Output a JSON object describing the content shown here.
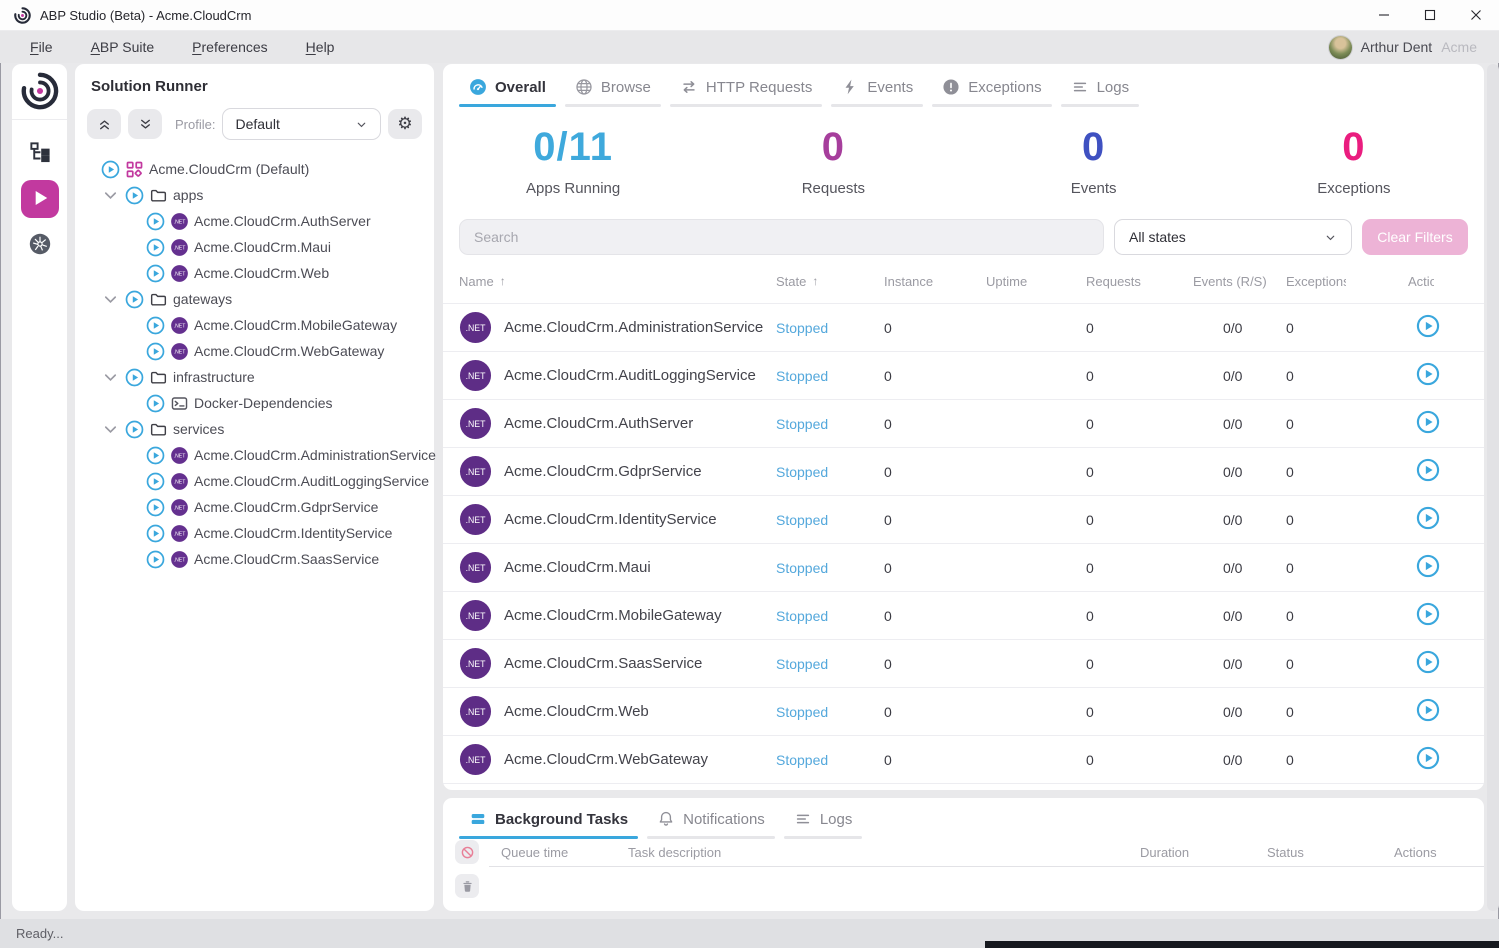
{
  "window": {
    "title": "ABP Studio (Beta) - Acme.CloudCrm",
    "controls": [
      "minimize",
      "maximize",
      "close"
    ]
  },
  "menu": {
    "items": [
      "File",
      "ABP Suite",
      "Preferences",
      "Help"
    ],
    "user": {
      "name": "Arthur Dent",
      "org": "Acme"
    }
  },
  "rail": {
    "items": [
      {
        "icon": "tree",
        "name": "solution-explorer",
        "active": false
      },
      {
        "icon": "play",
        "name": "solution-runner",
        "active": true
      },
      {
        "icon": "kubernetes",
        "name": "kubernetes",
        "active": false
      }
    ]
  },
  "solution_runner": {
    "title": "Solution Runner",
    "profile_label": "Profile:",
    "profile_value": "Default",
    "tree": [
      {
        "level": 0,
        "type": "solution",
        "label": "Acme.CloudCrm (Default)"
      },
      {
        "level": 1,
        "type": "folder",
        "label": "apps",
        "expanded": true
      },
      {
        "level": 2,
        "type": "net",
        "label": "Acme.CloudCrm.AuthServer"
      },
      {
        "level": 2,
        "type": "net",
        "label": "Acme.CloudCrm.Maui"
      },
      {
        "level": 2,
        "type": "net",
        "label": "Acme.CloudCrm.Web"
      },
      {
        "level": 1,
        "type": "folder",
        "label": "gateways",
        "expanded": true
      },
      {
        "level": 2,
        "type": "net",
        "label": "Acme.CloudCrm.MobileGateway"
      },
      {
        "level": 2,
        "type": "net",
        "label": "Acme.CloudCrm.WebGateway"
      },
      {
        "level": 1,
        "type": "folder",
        "label": "infrastructure",
        "expanded": true
      },
      {
        "level": 2,
        "type": "docker",
        "label": "Docker-Dependencies"
      },
      {
        "level": 1,
        "type": "folder",
        "label": "services",
        "expanded": true
      },
      {
        "level": 2,
        "type": "net",
        "label": "Acme.CloudCrm.AdministrationService"
      },
      {
        "level": 2,
        "type": "net",
        "label": "Acme.CloudCrm.AuditLoggingService"
      },
      {
        "level": 2,
        "type": "net",
        "label": "Acme.CloudCrm.GdprService"
      },
      {
        "level": 2,
        "type": "net",
        "label": "Acme.CloudCrm.IdentityService"
      },
      {
        "level": 2,
        "type": "net",
        "label": "Acme.CloudCrm.SaasService"
      }
    ]
  },
  "main": {
    "tabs": [
      {
        "label": "Overall",
        "icon": "gauge",
        "active": true
      },
      {
        "label": "Browse",
        "icon": "globe",
        "active": false
      },
      {
        "label": "HTTP Requests",
        "icon": "arrows",
        "active": false
      },
      {
        "label": "Events",
        "icon": "bolt",
        "active": false
      },
      {
        "label": "Exceptions",
        "icon": "exclaim",
        "active": false
      },
      {
        "label": "Logs",
        "icon": "lines",
        "active": false
      }
    ],
    "stats": [
      {
        "value": "0/11",
        "label": "Apps Running",
        "color": "#3fa9dc"
      },
      {
        "value": "0",
        "label": "Requests",
        "color": "#a63e9c"
      },
      {
        "value": "0",
        "label": "Events",
        "color": "#3f51c1"
      },
      {
        "value": "0",
        "label": "Exceptions",
        "color": "#ea1d7f"
      }
    ],
    "search_placeholder": "Search",
    "state_filter_value": "All states",
    "clear_filters_label": "Clear Filters",
    "table": {
      "columns": [
        {
          "label": "Name",
          "sorted": true
        },
        {
          "label": "State",
          "sorted": true
        },
        {
          "label": "Instance"
        },
        {
          "label": "Uptime"
        },
        {
          "label": "Requests"
        },
        {
          "label": "Events (R/S)"
        },
        {
          "label": "Exceptions"
        },
        {
          "label": "Actions"
        }
      ],
      "rows": [
        {
          "name": "Acme.CloudCrm.AdministrationService",
          "state": "Stopped",
          "instance": "0",
          "uptime": "",
          "requests": "0",
          "events": "0/0",
          "exceptions": "0"
        },
        {
          "name": "Acme.CloudCrm.AuditLoggingService",
          "state": "Stopped",
          "instance": "0",
          "uptime": "",
          "requests": "0",
          "events": "0/0",
          "exceptions": "0"
        },
        {
          "name": "Acme.CloudCrm.AuthServer",
          "state": "Stopped",
          "instance": "0",
          "uptime": "",
          "requests": "0",
          "events": "0/0",
          "exceptions": "0"
        },
        {
          "name": "Acme.CloudCrm.GdprService",
          "state": "Stopped",
          "instance": "0",
          "uptime": "",
          "requests": "0",
          "events": "0/0",
          "exceptions": "0"
        },
        {
          "name": "Acme.CloudCrm.IdentityService",
          "state": "Stopped",
          "instance": "0",
          "uptime": "",
          "requests": "0",
          "events": "0/0",
          "exceptions": "0"
        },
        {
          "name": "Acme.CloudCrm.Maui",
          "state": "Stopped",
          "instance": "0",
          "uptime": "",
          "requests": "0",
          "events": "0/0",
          "exceptions": "0"
        },
        {
          "name": "Acme.CloudCrm.MobileGateway",
          "state": "Stopped",
          "instance": "0",
          "uptime": "",
          "requests": "0",
          "events": "0/0",
          "exceptions": "0"
        },
        {
          "name": "Acme.CloudCrm.SaasService",
          "state": "Stopped",
          "instance": "0",
          "uptime": "",
          "requests": "0",
          "events": "0/0",
          "exceptions": "0"
        },
        {
          "name": "Acme.CloudCrm.Web",
          "state": "Stopped",
          "instance": "0",
          "uptime": "",
          "requests": "0",
          "events": "0/0",
          "exceptions": "0"
        },
        {
          "name": "Acme.CloudCrm.WebGateway",
          "state": "Stopped",
          "instance": "0",
          "uptime": "",
          "requests": "0",
          "events": "0/0",
          "exceptions": "0"
        }
      ]
    }
  },
  "bottom": {
    "tabs": [
      {
        "label": "Background Tasks",
        "icon": "tasks",
        "active": true
      },
      {
        "label": "Notifications",
        "icon": "bell",
        "active": false
      },
      {
        "label": "Logs",
        "icon": "lines",
        "active": false
      }
    ],
    "columns": [
      "Queue time",
      "Task description",
      "Duration",
      "Status",
      "Actions"
    ]
  },
  "status_bar": {
    "text": "Ready..."
  },
  "colors": {
    "accent_blue": "#3aa7dd",
    "brand_magenta": "#c2399f",
    "stopped_state": "#54a8dc",
    "net_badge": "#64308f"
  }
}
